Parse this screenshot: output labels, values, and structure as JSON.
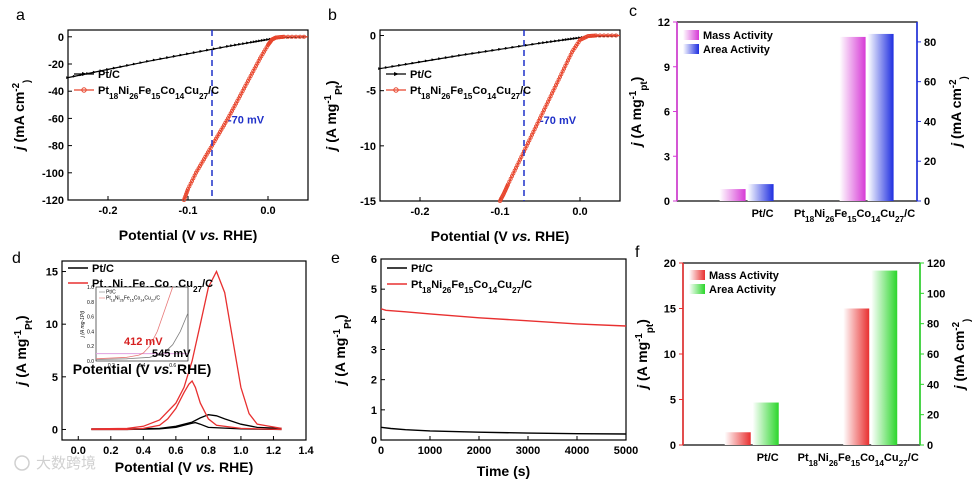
{
  "colors": {
    "pt": "#000000",
    "alloy": "#e8452c",
    "alloy_dark": "#d62020",
    "dash": "#1f30c8",
    "magenta": "#d63ad6",
    "blue": "#1e2ee0",
    "red": "#e83030",
    "green": "#2bd62b"
  },
  "watermark": "大数跨境",
  "chart_data": [
    {
      "id": "a",
      "type": "line",
      "letter": "a",
      "xlabel_parts": [
        "Potential (V ",
        "vs.",
        " RHE)"
      ],
      "ylabel_parts": [
        "j",
        " (mA cm",
        "-2",
        ")"
      ],
      "xlim": [
        -0.25,
        0.05
      ],
      "ylim": [
        -120,
        5
      ],
      "xticks": [
        -0.2,
        -0.1,
        0.0
      ],
      "xtick_labels": [
        "-0.2",
        "-0.1",
        "0.0"
      ],
      "yticks": [
        0,
        -20,
        -40,
        -60,
        -80,
        -100,
        -120
      ],
      "ytick_labels": [
        "0",
        "-20",
        "-40",
        "-60",
        "-80",
        "-100",
        "-120"
      ],
      "legend": [
        "Pt/C",
        "Pt18Ni26Fe15Co14Cu27/C"
      ],
      "annotation": "-70 mV",
      "dashed_x": -0.07,
      "series": [
        {
          "name": "Pt/C",
          "color": "#000000",
          "marker": "triangle",
          "x": [
            -0.25,
            -0.2,
            -0.15,
            -0.1,
            -0.05,
            -0.02,
            0.0,
            0.02,
            0.05
          ],
          "y": [
            -30,
            -24,
            -18,
            -12.5,
            -7,
            -4,
            -2,
            -0.5,
            0
          ]
        },
        {
          "name": "Pt18Ni26Fe15Co14Cu27/C",
          "color": "#e8452c",
          "marker": "circle",
          "x": [
            -0.105,
            -0.1,
            -0.09,
            -0.08,
            -0.07,
            -0.06,
            -0.05,
            -0.04,
            -0.03,
            -0.02,
            -0.01,
            0.0,
            0.005,
            0.01,
            0.02,
            0.05
          ],
          "y": [
            -120,
            -112,
            -100,
            -90,
            -80,
            -70,
            -60,
            -49,
            -38,
            -27,
            -16,
            -6,
            -2,
            -0.5,
            0,
            0
          ]
        }
      ]
    },
    {
      "id": "b",
      "type": "line",
      "letter": "b",
      "xlabel_parts": [
        "Potential (V ",
        "vs.",
        " RHE)"
      ],
      "ylabel_parts": [
        "j",
        " (A mg",
        "-1",
        "Pt",
        ")"
      ],
      "xlim": [
        -0.25,
        0.05
      ],
      "ylim": [
        -15,
        0.5
      ],
      "xticks": [
        -0.2,
        -0.1,
        0.0
      ],
      "xtick_labels": [
        "-0.2",
        "-0.1",
        "0.0"
      ],
      "yticks": [
        0,
        -5,
        -10,
        -15
      ],
      "ytick_labels": [
        "0",
        "-5",
        "-10",
        "-15"
      ],
      "legend": [
        "Pt/C",
        "Pt18Ni26Fe15Co14Cu27/C"
      ],
      "annotation": "-70 mV",
      "dashed_x": -0.07,
      "series": [
        {
          "name": "Pt/C",
          "color": "#000000",
          "marker": "triangle",
          "x": [
            -0.25,
            -0.2,
            -0.15,
            -0.1,
            -0.05,
            -0.02,
            0.0,
            0.02,
            0.05
          ],
          "y": [
            -3.0,
            -2.4,
            -1.8,
            -1.25,
            -0.7,
            -0.4,
            -0.2,
            -0.05,
            0
          ]
        },
        {
          "name": "Pt18Ni26Fe15Co14Cu27/C",
          "color": "#e8452c",
          "marker": "circle",
          "x": [
            -0.1,
            -0.095,
            -0.09,
            -0.08,
            -0.07,
            -0.06,
            -0.05,
            -0.04,
            -0.03,
            -0.02,
            -0.01,
            0.0,
            0.01,
            0.02,
            0.05
          ],
          "y": [
            -15,
            -14.3,
            -13.5,
            -12,
            -10.5,
            -9,
            -7.5,
            -6,
            -4.5,
            -3,
            -1.5,
            -0.4,
            -0.05,
            0,
            0
          ]
        }
      ]
    },
    {
      "id": "c",
      "type": "bar",
      "letter": "c",
      "categories": [
        "Pt/C",
        "Pt18Ni26Fe15Co14Cu27/C"
      ],
      "legend": [
        "Mass Activity",
        "Area Activity"
      ],
      "legend_colors": [
        "#d63ad6",
        "#1e2ee0"
      ],
      "y1label_parts": [
        "j",
        " (A mg",
        "-1",
        "pt",
        ")"
      ],
      "y2label_parts": [
        "j",
        " (mA cm",
        "-2",
        ")"
      ],
      "y1lim": [
        0,
        12
      ],
      "y1ticks": [
        0,
        3,
        6,
        9,
        12
      ],
      "y1tick_labels": [
        "0",
        "3",
        "6",
        "9",
        "12"
      ],
      "y2lim": [
        0,
        90
      ],
      "y2ticks": [
        0,
        20,
        40,
        60,
        80
      ],
      "y2tick_labels": [
        "0",
        "20",
        "40",
        "60",
        "80"
      ],
      "series": [
        {
          "name": "Mass Activity",
          "axis": "left",
          "color": "#d63ad6",
          "values": [
            0.8,
            11.0
          ]
        },
        {
          "name": "Area Activity",
          "axis": "right",
          "color": "#1e2ee0",
          "values": [
            8.5,
            84
          ]
        }
      ]
    },
    {
      "id": "d",
      "type": "line",
      "letter": "d",
      "xlabel_parts": [
        "Potential (V ",
        "vs.",
        " RHE)"
      ],
      "ylabel_parts": [
        "j",
        " (A mg",
        "-1",
        "Pt",
        ")"
      ],
      "xlim": [
        -0.1,
        1.4
      ],
      "ylim": [
        -1,
        16
      ],
      "xticks": [
        0.0,
        0.2,
        0.4,
        0.6,
        0.8,
        1.0,
        1.2,
        1.4
      ],
      "xtick_labels": [
        "0.0",
        "0.2",
        "0.4",
        "0.6",
        "0.8",
        "1.0",
        "1.2",
        "1.4"
      ],
      "yticks": [
        0,
        5,
        10,
        15
      ],
      "ytick_labels": [
        "0",
        "5",
        "10",
        "15"
      ],
      "legend": [
        "Pt/C",
        "Pt18Ni26Fe15Co14Cu27/C"
      ],
      "series": [
        {
          "name": "Pt/C forward",
          "color": "#000000",
          "x": [
            0.08,
            0.3,
            0.5,
            0.6,
            0.7,
            0.75,
            0.8,
            0.85,
            0.9,
            1.0,
            1.1,
            1.25
          ],
          "y": [
            0.05,
            0.05,
            0.1,
            0.3,
            0.7,
            1.1,
            1.4,
            1.3,
            1.0,
            0.5,
            0.2,
            0.1
          ]
        },
        {
          "name": "Pt/C reverse",
          "color": "#000000",
          "x": [
            1.25,
            1.0,
            0.8,
            0.75,
            0.72,
            0.7,
            0.65,
            0.6,
            0.5,
            0.3,
            0.08
          ],
          "y": [
            0.0,
            0.05,
            0.2,
            0.5,
            0.65,
            0.6,
            0.4,
            0.2,
            0.05,
            0.0,
            0.0
          ]
        },
        {
          "name": "Pt18Ni26Fe15Co14Cu27/C forward",
          "color": "#e83030",
          "x": [
            0.08,
            0.3,
            0.4,
            0.5,
            0.6,
            0.65,
            0.7,
            0.75,
            0.8,
            0.85,
            0.9,
            0.95,
            1.0,
            1.05,
            1.1,
            1.25
          ],
          "y": [
            0.05,
            0.1,
            0.3,
            0.9,
            2.5,
            4.0,
            6.5,
            10.0,
            13.5,
            15.0,
            13.0,
            8.5,
            4.0,
            1.5,
            0.5,
            0.1
          ]
        },
        {
          "name": "Pt18Ni26Fe15Co14Cu27/C reverse",
          "color": "#e83030",
          "x": [
            1.25,
            1.0,
            0.85,
            0.8,
            0.75,
            0.72,
            0.7,
            0.68,
            0.65,
            0.6,
            0.55,
            0.5,
            0.4,
            0.3,
            0.08
          ],
          "y": [
            0.0,
            0.1,
            0.4,
            1.0,
            2.5,
            4.0,
            4.6,
            4.3,
            3.5,
            2.0,
            1.0,
            0.4,
            0.1,
            0.0,
            0.0
          ]
        }
      ],
      "inset": {
        "legend": [
          "Pt/C",
          "Pt18Ni26Fe15Co14Cu27/C"
        ],
        "xlabel_parts": [
          "Potential (V ",
          "vs.",
          " RHE)"
        ],
        "ylabel": "j (A mg-1Pt)",
        "xlim": [
          0.1,
          0.7
        ],
        "ylim": [
          0,
          1.0
        ],
        "xticks": [
          0.2,
          0.4,
          0.6
        ],
        "xtick_labels": [
          "0.2",
          "0.4",
          "0.6"
        ],
        "yticks": [
          0.0,
          0.2,
          0.4,
          0.6,
          0.8,
          1.0
        ],
        "ytick_labels": [
          "0.0",
          "0.2",
          "0.4",
          "0.6",
          "0.8",
          "1.0"
        ],
        "ref_y": 0.1,
        "annotations": [
          "412 mV",
          "545 mV"
        ],
        "series": [
          {
            "name": "Pt/C",
            "color": "#808080",
            "x": [
              0.1,
              0.3,
              0.45,
              0.5,
              0.55,
              0.6,
              0.65,
              0.7
            ],
            "y": [
              0.02,
              0.03,
              0.05,
              0.08,
              0.12,
              0.22,
              0.4,
              0.65
            ]
          },
          {
            "name": "Pt18Ni26Fe15Co14Cu27/C",
            "color": "#e87878",
            "x": [
              0.1,
              0.3,
              0.38,
              0.41,
              0.45,
              0.5,
              0.55,
              0.6
            ],
            "y": [
              0.03,
              0.05,
              0.08,
              0.11,
              0.2,
              0.4,
              0.7,
              1.0
            ]
          }
        ]
      }
    },
    {
      "id": "e",
      "type": "line",
      "letter": "e",
      "xlabel_parts": [
        "Time (s)"
      ],
      "ylabel_parts": [
        "j",
        " (A mg",
        "-1",
        "Pt",
        ")"
      ],
      "xlim": [
        0,
        5000
      ],
      "ylim": [
        0,
        6
      ],
      "xticks": [
        0,
        1000,
        2000,
        3000,
        4000,
        5000
      ],
      "xtick_labels": [
        "0",
        "1000",
        "2000",
        "3000",
        "4000",
        "5000"
      ],
      "yticks": [
        0,
        1,
        2,
        3,
        4,
        5,
        6
      ],
      "ytick_labels": [
        "0",
        "1",
        "2",
        "3",
        "4",
        "5",
        "6"
      ],
      "legend": [
        "Pt/C",
        "Pt18Ni26Fe15Co14Cu27/C"
      ],
      "series": [
        {
          "name": "Pt/C",
          "color": "#000000",
          "x": [
            0,
            200,
            500,
            1000,
            2000,
            3000,
            4000,
            5000
          ],
          "y": [
            0.42,
            0.38,
            0.34,
            0.3,
            0.26,
            0.23,
            0.21,
            0.2
          ]
        },
        {
          "name": "Pt18Ni26Fe15Co14Cu27/C",
          "color": "#e83030",
          "x": [
            0,
            100,
            500,
            1000,
            2000,
            3000,
            4000,
            5000
          ],
          "y": [
            4.35,
            4.3,
            4.25,
            4.18,
            4.05,
            3.95,
            3.85,
            3.78
          ]
        }
      ]
    },
    {
      "id": "f",
      "type": "bar",
      "letter": "f",
      "categories": [
        "Pt/C",
        "Pt18Ni26Fe15Co14Cu27/C"
      ],
      "legend": [
        "Mass Activity",
        "Area Activity"
      ],
      "legend_colors": [
        "#e83030",
        "#2bd62b"
      ],
      "y1label_parts": [
        "j",
        " (A mg",
        "-1",
        "pt",
        ")"
      ],
      "y2label_parts": [
        "j",
        " (mA cm",
        "-2",
        ")"
      ],
      "y1lim": [
        0,
        20
      ],
      "y1ticks": [
        0,
        5,
        10,
        15,
        20
      ],
      "y1tick_labels": [
        "0",
        "5",
        "10",
        "15",
        "20"
      ],
      "y2lim": [
        0,
        120
      ],
      "y2ticks": [
        0,
        20,
        40,
        60,
        80,
        100,
        120
      ],
      "y2tick_labels": [
        "0",
        "20",
        "40",
        "60",
        "80",
        "100",
        "120"
      ],
      "series": [
        {
          "name": "Mass Activity",
          "axis": "left",
          "color": "#e83030",
          "values": [
            1.4,
            15.0
          ]
        },
        {
          "name": "Area Activity",
          "axis": "right",
          "color": "#2bd62b",
          "values": [
            28,
            115
          ]
        }
      ]
    }
  ]
}
